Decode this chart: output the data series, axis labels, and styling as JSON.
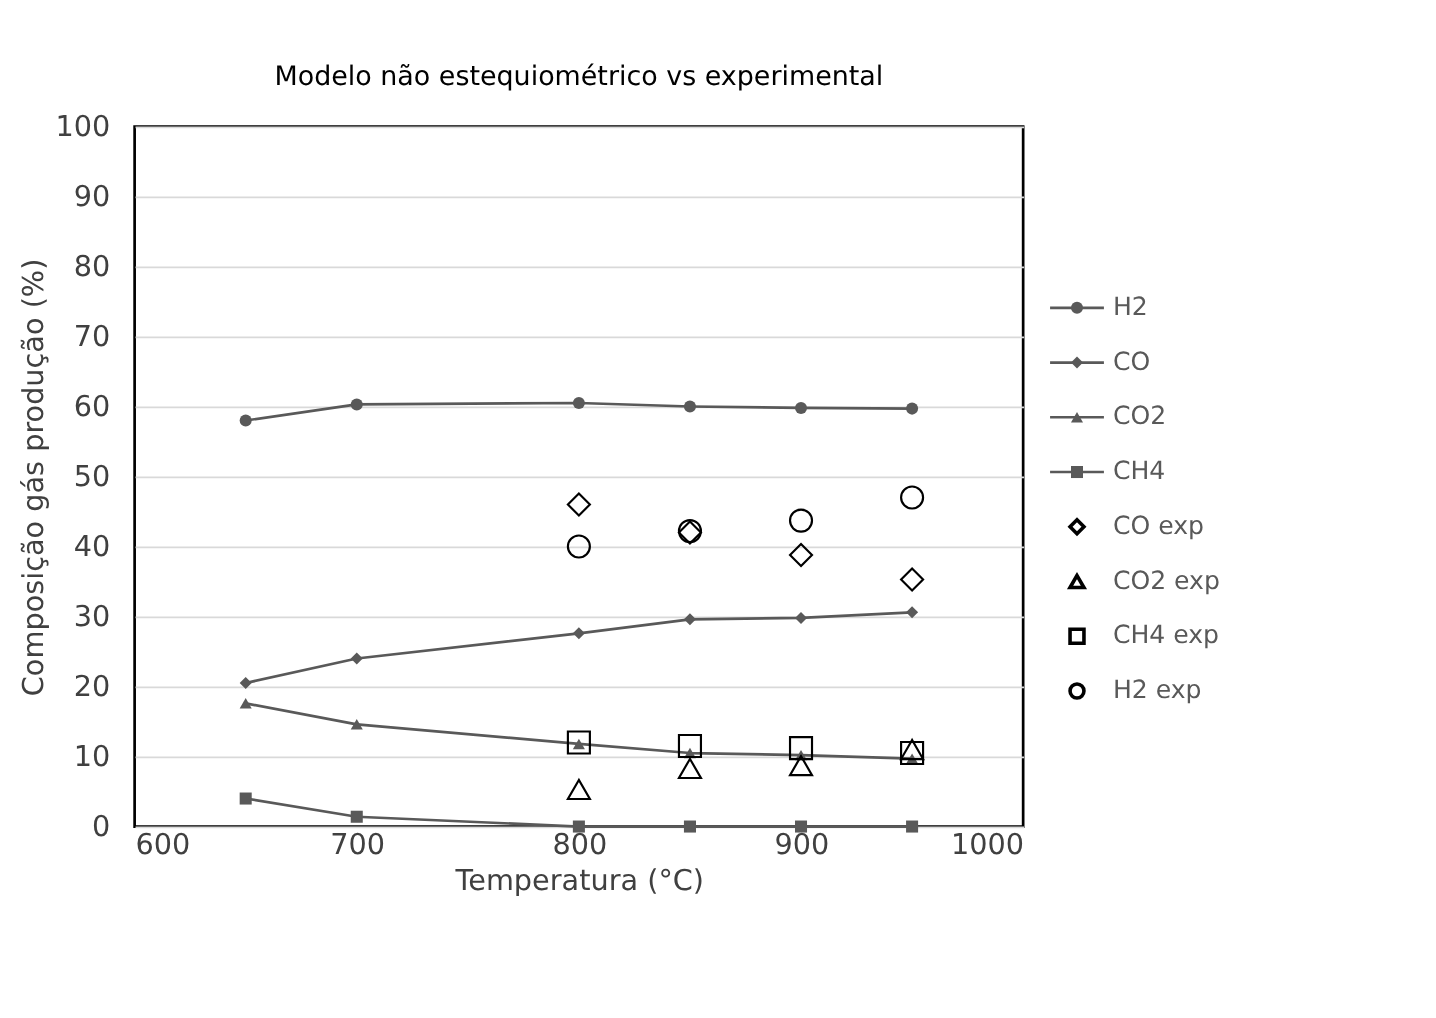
{
  "chart_data": {
    "type": "line",
    "title": "Modelo não estequiométrico vs experimental",
    "xlabel": "Temperatura (°C)",
    "ylabel": "Composição gás produção (%)",
    "x": [
      650,
      700,
      800,
      850,
      900,
      950
    ],
    "xlim": [
      600,
      1000
    ],
    "xticks": [
      600,
      700,
      800,
      900,
      1000
    ],
    "ylim": [
      0,
      100
    ],
    "yticks": [
      0,
      10,
      20,
      30,
      40,
      50,
      60,
      70,
      80,
      90,
      100
    ],
    "grid": "y",
    "legend": "right",
    "series": [
      {
        "name": "H2",
        "marker": "circle",
        "color": "#595959",
        "values": [
          58,
          60.3,
          60.5,
          60,
          59.8,
          59.7
        ]
      },
      {
        "name": "CO",
        "marker": "diamond",
        "color": "#595959",
        "values": [
          20.5,
          24,
          27.6,
          29.6,
          29.8,
          30.6
        ]
      },
      {
        "name": "CO2",
        "marker": "triangle",
        "color": "#595959",
        "values": [
          17.6,
          14.6,
          11.8,
          10.5,
          10.2,
          9.7
        ]
      },
      {
        "name": "CH4",
        "marker": "square",
        "color": "#595959",
        "values": [
          4,
          1.4,
          0,
          0,
          0,
          0
        ]
      },
      {
        "name": "CO exp",
        "type": "scatter",
        "marker": "diamond",
        "color": "#000000",
        "x": [
          800,
          850,
          900,
          950
        ],
        "values": [
          46,
          42,
          38.8,
          35.3
        ]
      },
      {
        "name": "CO2 exp",
        "type": "scatter",
        "marker": "triangle",
        "color": "#000000",
        "x": [
          800,
          850,
          900,
          950
        ],
        "values": [
          5.3,
          8.3,
          8.7,
          11
        ]
      },
      {
        "name": "CH4 exp",
        "type": "scatter",
        "marker": "square",
        "color": "#000000",
        "x": [
          800,
          850,
          900,
          950
        ],
        "values": [
          12,
          11.5,
          11.2,
          10.5
        ]
      },
      {
        "name": "H2 exp",
        "type": "scatter",
        "marker": "circle",
        "color": "#000000",
        "x": [
          800,
          850,
          900,
          950
        ],
        "values": [
          40,
          42.2,
          43.7,
          47
        ]
      }
    ]
  }
}
